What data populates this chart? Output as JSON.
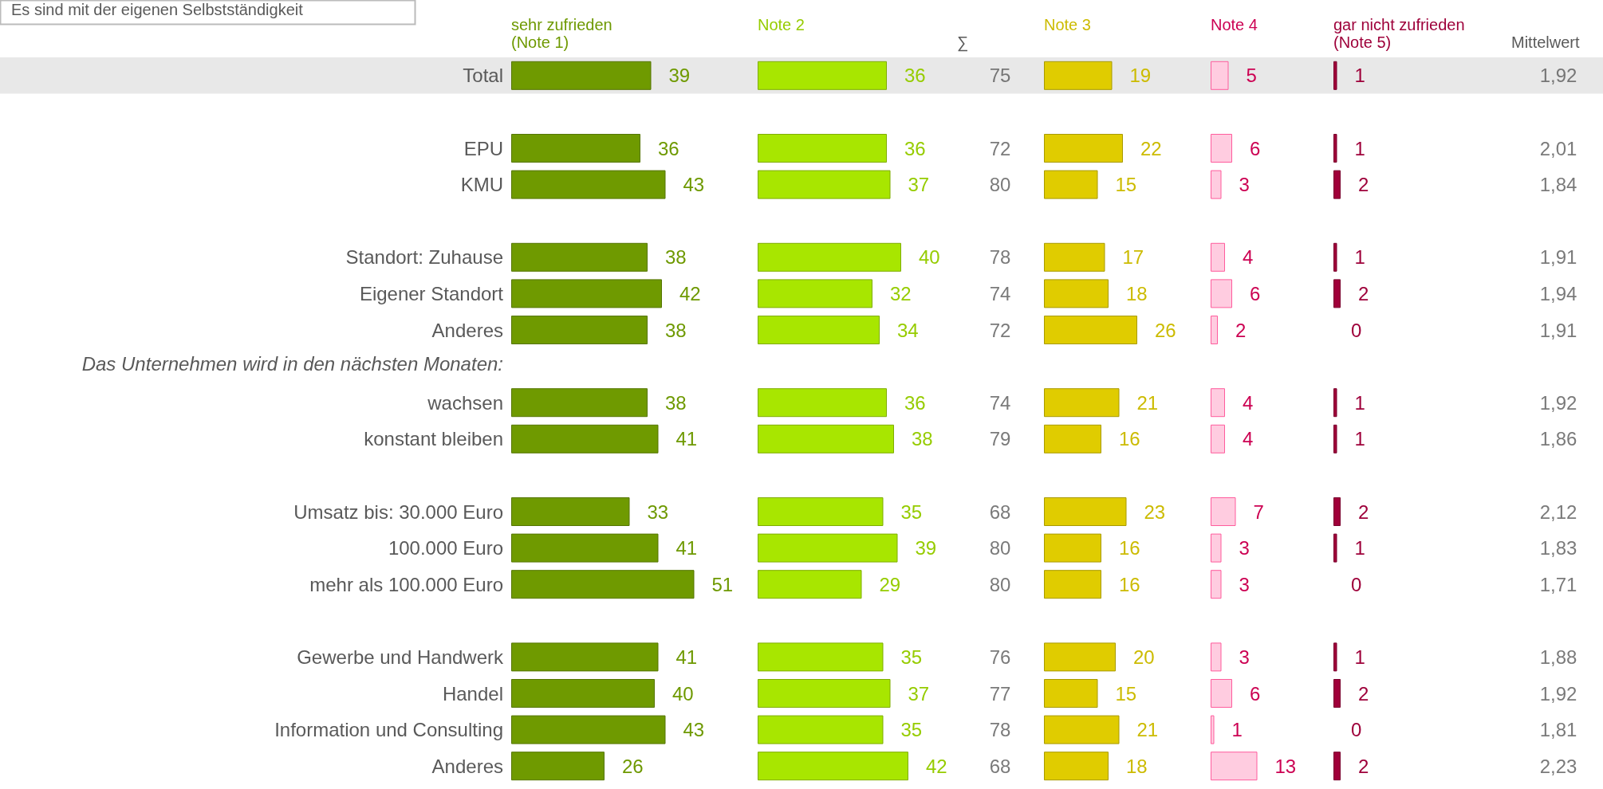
{
  "chart_data": [
    {
      "type": "bar",
      "orientation": "horizontal",
      "title": "Es sind mit der eigenen Selbstständigkeit",
      "categories": [
        "Total",
        null,
        "EPU",
        "KMU",
        null,
        "Standort: Zuhause",
        "Eigener Standort",
        "Anderes",
        null,
        "wachsen",
        "konstant bleiben",
        null,
        "Umsatz bis: 30.000 Euro",
        "100.000 Euro",
        "mehr als 100.000 Euro",
        null,
        "Gewerbe und Handwerk",
        "Handel",
        "Information und Consulting",
        "Anderes"
      ],
      "annotations": [
        "Das Unternehmen wird in den nächsten Monaten:"
      ],
      "series": [
        {
          "name": "sehr zufrieden (Note 1)",
          "color": "#6f9a00",
          "values": [
            39,
            null,
            36,
            43,
            null,
            38,
            42,
            38,
            null,
            38,
            41,
            null,
            33,
            41,
            51,
            null,
            41,
            40,
            43,
            26
          ]
        }
      ],
      "bands": [
        {
          "axis": "y",
          "from": "Total",
          "to": "Total",
          "color": "#e8e8e8"
        }
      ],
      "data_labels": true,
      "tick_labels": "y"
    },
    {
      "type": "bar",
      "orientation": "horizontal",
      "categories": [
        "Total",
        null,
        "EPU",
        "KMU",
        null,
        "Standort: Zuhause",
        "Eigener Standort",
        "Anderes",
        null,
        "wachsen",
        "konstant bleiben",
        null,
        "Umsatz bis: 30.000 Euro",
        "100.000 Euro",
        "mehr als 100.000 Euro",
        null,
        "Gewerbe und Handwerk",
        "Handel",
        "Information und Consulting",
        "Anderes"
      ],
      "series": [
        {
          "name": "Note 2",
          "color": "#a8e600",
          "values": [
            36,
            null,
            36,
            37,
            null,
            40,
            32,
            34,
            null,
            36,
            38,
            null,
            35,
            39,
            29,
            null,
            35,
            37,
            35,
            42
          ]
        }
      ],
      "bands": [
        {
          "axis": "y",
          "from": "Total",
          "to": "Total",
          "color": "#e8e8e8"
        }
      ],
      "data_labels": true,
      "tick_labels": false
    },
    {
      "type": "other",
      "series": [
        {
          "name": "∑",
          "color": "#595959",
          "values": [
            75,
            null,
            72,
            80,
            null,
            78,
            74,
            72,
            null,
            74,
            79,
            null,
            68,
            80,
            80,
            null,
            76,
            77,
            78,
            68
          ]
        }
      ],
      "data_labels": true
    },
    {
      "type": "bar",
      "orientation": "horizontal",
      "categories": [
        "Total",
        null,
        "EPU",
        "KMU",
        null,
        "Standort: Zuhause",
        "Eigener Standort",
        "Anderes",
        null,
        "wachsen",
        "konstant bleiben",
        null,
        "Umsatz bis: 30.000 Euro",
        "100.000 Euro",
        "mehr als 100.000 Euro",
        null,
        "Gewerbe und Handwerk",
        "Handel",
        "Information und Consulting",
        "Anderes"
      ],
      "series": [
        {
          "name": "Note 3",
          "color": "#e0cc00",
          "values": [
            19,
            null,
            22,
            15,
            null,
            17,
            18,
            26,
            null,
            21,
            16,
            null,
            23,
            16,
            16,
            null,
            20,
            15,
            21,
            18
          ]
        }
      ],
      "bands": [
        {
          "axis": "y",
          "from": "Total",
          "to": "Total",
          "color": "#e8e8e8"
        }
      ],
      "data_labels": true,
      "tick_labels": false
    },
    {
      "type": "bar",
      "orientation": "horizontal",
      "categories": [
        "Total",
        null,
        "EPU",
        "KMU",
        null,
        "Standort: Zuhause",
        "Eigener Standort",
        "Anderes",
        null,
        "wachsen",
        "konstant bleiben",
        null,
        "Umsatz bis: 30.000 Euro",
        "100.000 Euro",
        "mehr als 100.000 Euro",
        null,
        "Gewerbe und Handwerk",
        "Handel",
        "Information und Consulting",
        "Anderes"
      ],
      "series": [
        {
          "name": "Note 4",
          "color": "#ffcce0",
          "values": [
            5,
            null,
            6,
            3,
            null,
            4,
            6,
            2,
            null,
            4,
            4,
            null,
            7,
            3,
            3,
            null,
            3,
            6,
            1,
            13
          ]
        }
      ],
      "bands": [
        {
          "axis": "y",
          "from": "Total",
          "to": "Total",
          "color": "#e8e8e8"
        }
      ],
      "data_labels": true,
      "tick_labels": false
    },
    {
      "type": "bar",
      "orientation": "horizontal",
      "categories": [
        "Total",
        null,
        "EPU",
        "KMU",
        null,
        "Standort: Zuhause",
        "Eigener Standort",
        "Anderes",
        null,
        "wachsen",
        "konstant bleiben",
        null,
        "Umsatz bis: 30.000 Euro",
        "100.000 Euro",
        "mehr als 100.000 Euro",
        null,
        "Gewerbe und Handwerk",
        "Handel",
        "Information und Consulting",
        "Anderes"
      ],
      "series": [
        {
          "name": "gar nicht zufrieden (Note 5)",
          "color": "#a0003a",
          "values": [
            1,
            null,
            1,
            2,
            null,
            1,
            2,
            0,
            null,
            1,
            1,
            null,
            2,
            1,
            0,
            null,
            1,
            2,
            0,
            2
          ]
        }
      ],
      "bands": [
        {
          "axis": "y",
          "from": "Total",
          "to": "Total",
          "color": "#e8e8e8"
        }
      ],
      "data_labels": true,
      "tick_labels": false
    },
    {
      "type": "other",
      "series": [
        {
          "name": "Mittelwert",
          "color": "#595959",
          "values": [
            1.92,
            null,
            2.01,
            1.84,
            null,
            1.91,
            1.94,
            1.91,
            null,
            1.92,
            1.86,
            null,
            2.12,
            1.83,
            1.71,
            null,
            1.88,
            1.92,
            1.81,
            2.23
          ],
          "value_labels": [
            "1,92",
            null,
            "2,01",
            "1,84",
            null,
            "1,91",
            "1,94",
            "1,91",
            null,
            "1,92",
            "1,86",
            null,
            "2,12",
            "1,83",
            "1,71",
            null,
            "1,88",
            "1,92",
            "1,81",
            "2,23"
          ]
        }
      ]
    }
  ]
}
